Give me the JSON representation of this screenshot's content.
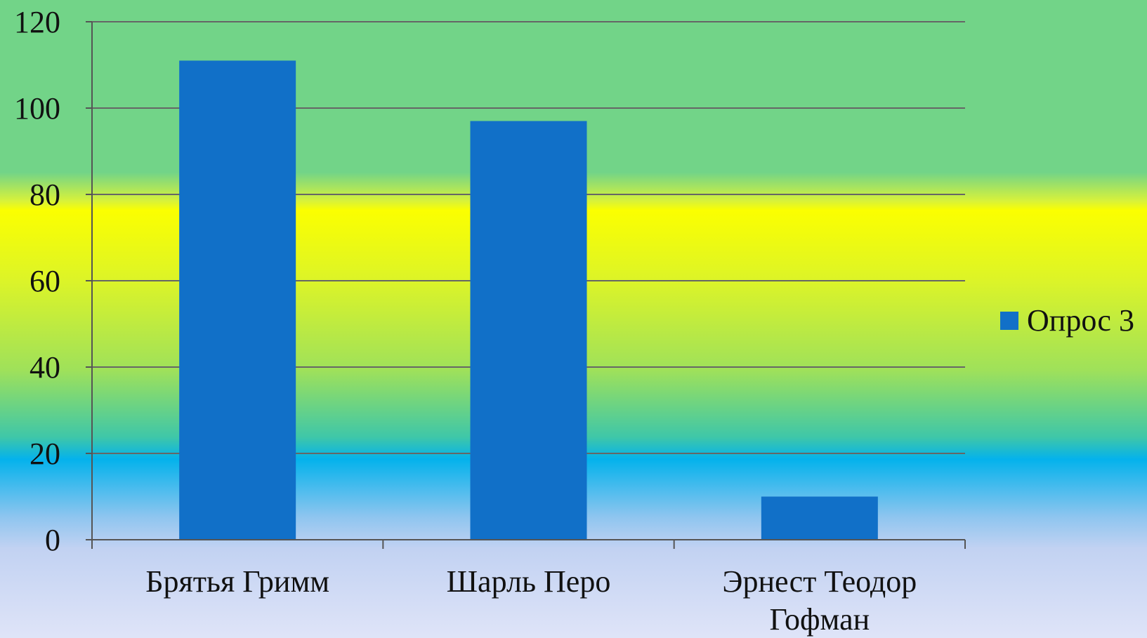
{
  "chart_data": {
    "type": "bar",
    "categories": [
      [
        "Брятья Гримм"
      ],
      [
        "Шарль Перо"
      ],
      [
        "Эрнест Теодор",
        "Гофман"
      ]
    ],
    "series": [
      {
        "name": "Опрос 3",
        "values": [
          111,
          97,
          10
        ],
        "color": "#1170c8"
      }
    ],
    "ylim": [
      0,
      120
    ],
    "yticks": [
      "0",
      "20",
      "40",
      "60",
      "80",
      "100",
      "120"
    ],
    "grid": true,
    "legend": "right",
    "colors": {
      "gridline": "#666666",
      "axis": "#555555",
      "bar": "#1170c8"
    }
  }
}
